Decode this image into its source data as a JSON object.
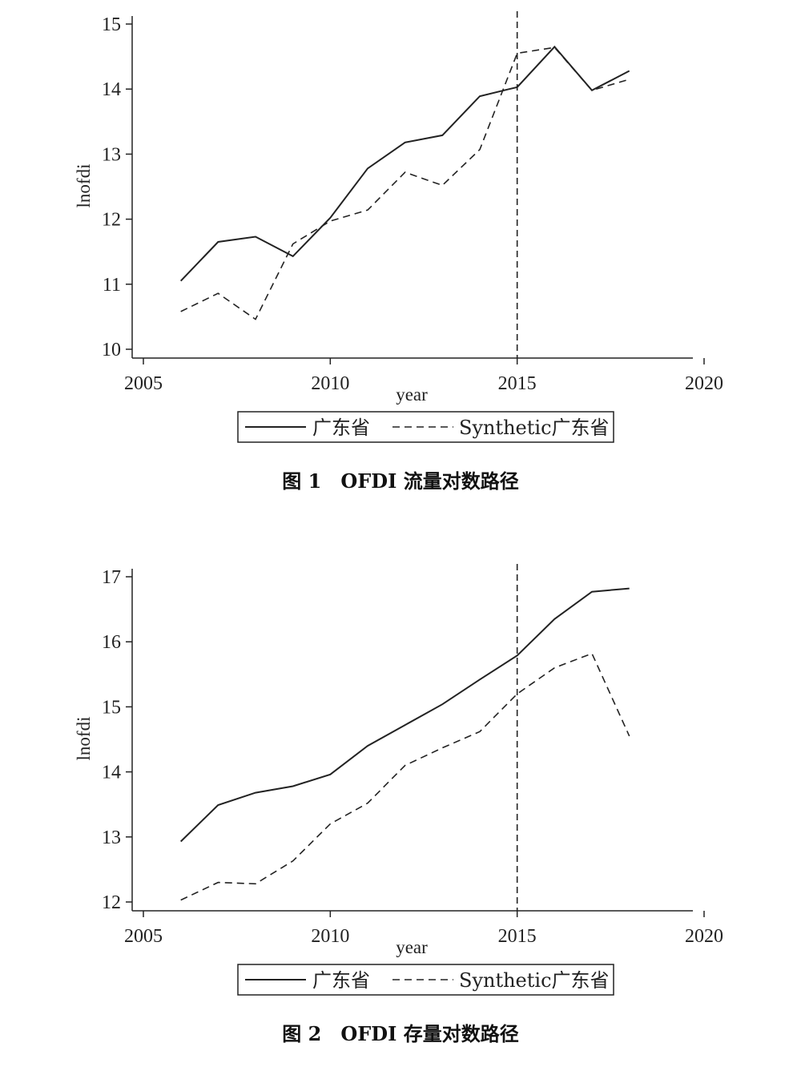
{
  "figures": [
    {
      "caption": "图 1　OFDI 流量对数路径",
      "legend": {
        "solid_label": "广东省",
        "dashed_label": "Synthetic广东省"
      }
    },
    {
      "caption": "图 2　OFDI 存量对数路径",
      "legend": {
        "solid_label": "广东省",
        "dashed_label": "Synthetic广东省"
      }
    }
  ],
  "chart_data": [
    {
      "type": "line",
      "title": "",
      "xlabel": "year",
      "ylabel": "lnofdi",
      "xlim": [
        2005,
        2020
      ],
      "ylim": [
        10,
        15
      ],
      "xticks": [
        "2005",
        "2010",
        "2015",
        "2020"
      ],
      "yticks": [
        "10",
        "11",
        "12",
        "13",
        "14",
        "15"
      ],
      "vline_x": 2015,
      "legend_position": "bottom",
      "x": [
        2006,
        2007,
        2008,
        2009,
        2010,
        2011,
        2012,
        2013,
        2014,
        2015,
        2016,
        2017,
        2018
      ],
      "series": [
        {
          "name": "广东省",
          "style": "solid",
          "values": [
            11.05,
            11.65,
            11.73,
            11.43,
            12.02,
            12.78,
            13.18,
            13.29,
            13.89,
            14.03,
            14.65,
            13.98,
            14.28
          ]
        },
        {
          "name": "Synthetic广东省",
          "style": "dashed",
          "values": [
            10.58,
            10.86,
            10.46,
            11.62,
            11.97,
            12.14,
            12.72,
            12.52,
            13.07,
            14.55,
            14.64,
            13.98,
            14.15
          ]
        }
      ]
    },
    {
      "type": "line",
      "title": "",
      "xlabel": "year",
      "ylabel": "lnofdi",
      "xlim": [
        2005,
        2020
      ],
      "ylim": [
        12,
        17
      ],
      "xticks": [
        "2005",
        "2010",
        "2015",
        "2020"
      ],
      "yticks": [
        "12",
        "13",
        "14",
        "15",
        "16",
        "17"
      ],
      "vline_x": 2015,
      "legend_position": "bottom",
      "x": [
        2006,
        2007,
        2008,
        2009,
        2010,
        2011,
        2012,
        2013,
        2014,
        2015,
        2016,
        2017,
        2018
      ],
      "series": [
        {
          "name": "广东省",
          "style": "solid",
          "values": [
            12.93,
            13.49,
            13.68,
            13.78,
            13.96,
            14.4,
            14.72,
            15.04,
            15.42,
            15.79,
            16.35,
            16.77,
            16.82
          ]
        },
        {
          "name": "Synthetic广东省",
          "style": "dashed",
          "values": [
            12.03,
            12.3,
            12.28,
            12.63,
            13.2,
            13.52,
            14.1,
            14.37,
            14.62,
            15.2,
            15.6,
            15.82,
            14.55
          ]
        }
      ]
    }
  ]
}
